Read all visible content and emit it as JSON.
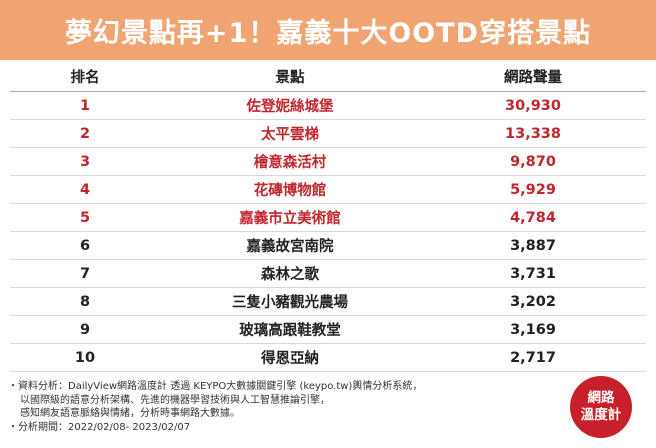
{
  "title": "夢幻景點再+1！嘉義十大OOTD穿搭景點",
  "table": {
    "headers": [
      "排名",
      "景點",
      "網路聲量"
    ],
    "rows": [
      {
        "rank": "1",
        "spot": "佐登妮絲城堡",
        "volume": "30,930"
      },
      {
        "rank": "2",
        "spot": "太平雲梯",
        "volume": "13,338"
      },
      {
        "rank": "3",
        "spot": "檜意森活村",
        "volume": "9,870"
      },
      {
        "rank": "4",
        "spot": "花磚博物館",
        "volume": "5,929"
      },
      {
        "rank": "5",
        "spot": "嘉義市立美術館",
        "volume": "4,784"
      },
      {
        "rank": "6",
        "spot": "嘉義故宮南院",
        "volume": "3,887"
      },
      {
        "rank": "7",
        "spot": "森林之歌",
        "volume": "3,731"
      },
      {
        "rank": "8",
        "spot": "三隻小豬觀光農場",
        "volume": "3,202"
      },
      {
        "rank": "9",
        "spot": "玻璃高跟鞋教堂",
        "volume": "3,169"
      },
      {
        "rank": "10",
        "spot": "得恩亞納",
        "volume": "2,717"
      }
    ]
  },
  "footer": {
    "line1": "・資料分析：DailyView網路溫度計 透過 KEYPO大數據關鍵引擎 (keypo.tw)輿情分析系統，",
    "line2": "以國際級的語意分析架構、先進的機器學習技術與人工智慧推論引擎，",
    "line3": "感知網友語意脈絡與情緒，分析時事網路大數據。",
    "line4": "・分析期間：2022/02/08- 2023/02/07"
  },
  "logo": {
    "line1": "網路",
    "line2": "溫度計"
  },
  "colors": {
    "banner": "#f0a472",
    "highlight": "#c0262d",
    "logo": "#c8202a"
  }
}
